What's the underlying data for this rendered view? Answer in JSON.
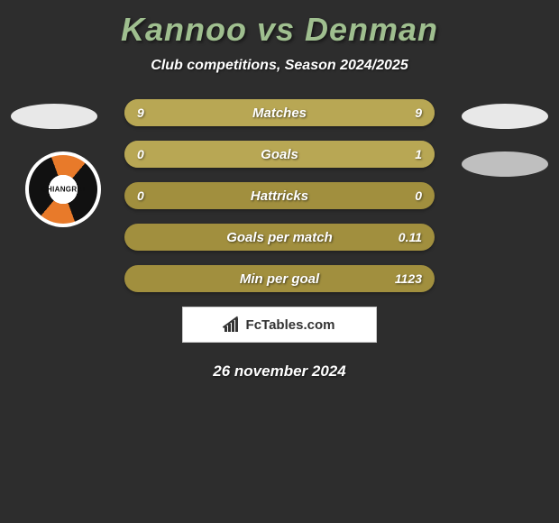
{
  "title": "Kannoo vs Denman",
  "title_color": "#9fbf8f",
  "subtitle": "Club competitions, Season 2024/2025",
  "date": "26 november 2024",
  "brand": "FcTables.com",
  "background_color": "#2d2d2d",
  "bar_base_color": "#a18f3e",
  "bar_fill_color": "#b8a754",
  "logo_text": "CHIANGRAI",
  "bars": [
    {
      "label": "Matches",
      "left": "9",
      "right": "9",
      "left_pct": 50,
      "right_pct": 50
    },
    {
      "label": "Goals",
      "left": "0",
      "right": "1",
      "left_pct": 18,
      "right_pct": 82
    },
    {
      "label": "Hattricks",
      "left": "0",
      "right": "0",
      "left_pct": 0,
      "right_pct": 0
    },
    {
      "label": "Goals per match",
      "left": "",
      "right": "0.11",
      "left_pct": 0,
      "right_pct": 0
    },
    {
      "label": "Min per goal",
      "left": "",
      "right": "1123",
      "left_pct": 0,
      "right_pct": 0
    }
  ]
}
